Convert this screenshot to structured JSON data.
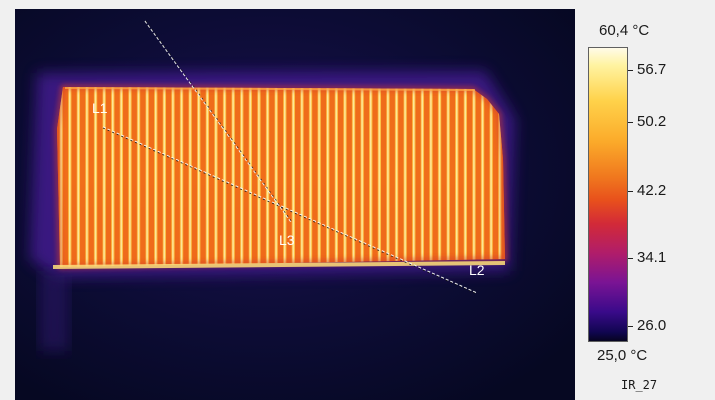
{
  "thermal_image": {
    "lines": [
      {
        "label": "L1"
      },
      {
        "label": "L2"
      },
      {
        "label": "L3"
      }
    ]
  },
  "scale": {
    "max_label": "60,4 °C",
    "min_label": "25,0 °C",
    "ticks": [
      "56.7",
      "50.2",
      "42.2",
      "34.1",
      "26.0"
    ]
  },
  "image_name": "IR_27"
}
